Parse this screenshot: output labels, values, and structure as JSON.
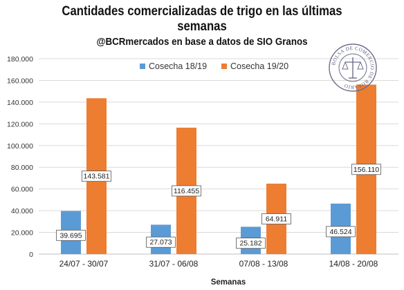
{
  "chart_data": {
    "type": "bar",
    "title_lines": [
      "Cantidades comercializadas de trigo en las últimas",
      "semanas"
    ],
    "subtitle": "@BCRmercados en base a datos de SIO Granos",
    "xlabel": "Semanas",
    "ylabel": "",
    "categories": [
      "24/07 - 30/07",
      "31/07 - 06/08",
      "07/08 - 13/08",
      "14/08 - 20/08"
    ],
    "series": [
      {
        "name": "Cosecha 18/19",
        "color": "#5b9bd5",
        "values": [
          39695,
          27073,
          25182,
          46524
        ],
        "labels": [
          "39.695",
          "27.073",
          "25.182",
          "46.524"
        ]
      },
      {
        "name": "Cosecha 19/20",
        "color": "#ed7d31",
        "values": [
          143581,
          116455,
          64911,
          156110
        ],
        "labels": [
          "143.581",
          "116.455",
          "64.911",
          "156.110"
        ]
      }
    ],
    "ylim": [
      0,
      180000
    ],
    "yticks": [
      0,
      20000,
      40000,
      60000,
      80000,
      100000,
      120000,
      140000,
      160000,
      180000
    ],
    "ytick_labels": [
      "0",
      "20.000",
      "40.000",
      "60.000",
      "80.000",
      "100.000",
      "120.000",
      "140.000",
      "160.000",
      "180.000"
    ],
    "grid": true,
    "legend_position": "top-center"
  },
  "seal": {
    "icon": "bolsa-de-comercio-seal-icon",
    "text": "BOLSA DE COMERCIO DE ROSARIO"
  }
}
